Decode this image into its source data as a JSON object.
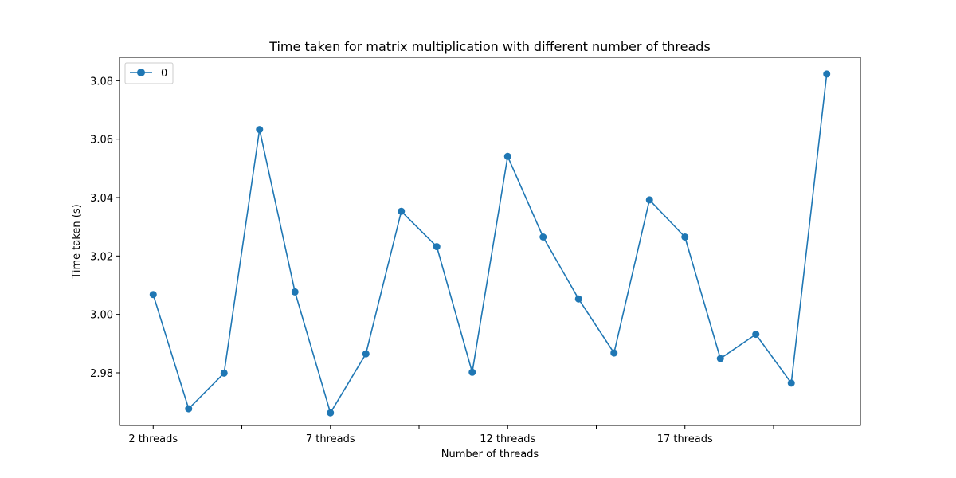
{
  "chart_data": {
    "type": "line",
    "title": "Time taken for matrix multiplication with different number of threads",
    "xlabel": "Number of threads",
    "ylabel": "Time taken (s)",
    "x": [
      2,
      3,
      4,
      5,
      6,
      7,
      8,
      9,
      10,
      11,
      12,
      13,
      14,
      15,
      16,
      17,
      18,
      19,
      20,
      21
    ],
    "series": [
      {
        "name": "0",
        "color": "#1f77b4",
        "values": [
          3.0068,
          2.9677,
          2.9799,
          3.0633,
          3.0077,
          2.9663,
          2.9865,
          3.0353,
          3.0232,
          2.9802,
          3.0541,
          3.0265,
          3.0053,
          2.9868,
          3.0392,
          3.0265,
          2.9849,
          2.9932,
          2.9765,
          3.0823
        ]
      }
    ],
    "x_ticks": [
      2,
      4.5,
      7,
      9.5,
      12,
      14.5,
      17,
      19.5
    ],
    "x_tick_labels": [
      "2 threads",
      "",
      "7 threads",
      "",
      "12 threads",
      "",
      "17 threads",
      ""
    ],
    "y_ticks": [
      2.98,
      3.0,
      3.02,
      3.04,
      3.06,
      3.08
    ],
    "y_tick_labels": [
      "2.98",
      "3.00",
      "3.02",
      "3.04",
      "3.06",
      "3.08"
    ],
    "xlim": [
      1.05,
      21.95
    ],
    "ylim": [
      2.962,
      3.088
    ],
    "grid": false,
    "legend_position": "top-left"
  }
}
